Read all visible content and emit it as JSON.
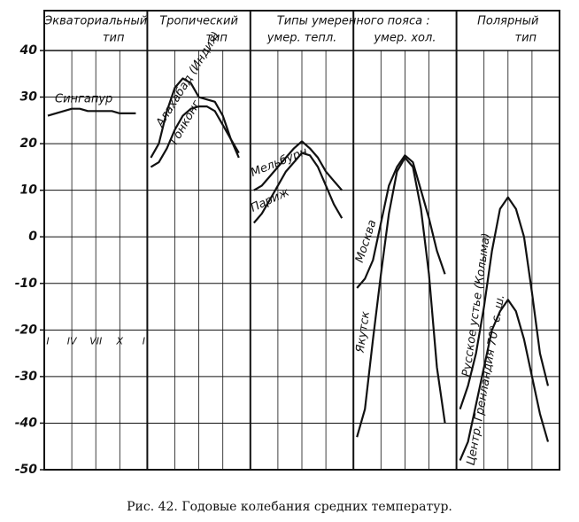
{
  "chart_data": {
    "type": "line",
    "caption": "Рис. 42. Годовые колебания средних температур.",
    "panels": [
      {
        "title": "Экваториальный",
        "sub": "тип"
      },
      {
        "title": "Тропический",
        "sub": "тип"
      },
      {
        "sub": "умер. тепл."
      },
      {
        "sub": "умер. хол."
      },
      {
        "title": "Полярный",
        "sub": "тип"
      }
    ],
    "group_title": "Типы умеренного пояса :",
    "x": [
      1,
      2,
      3,
      4,
      5,
      6,
      7,
      8,
      9,
      10,
      11,
      12
    ],
    "xlim": [
      1,
      13
    ],
    "xticks": [
      {
        "value": 1,
        "label": "I"
      },
      {
        "value": 4,
        "label": "IV"
      },
      {
        "value": 7,
        "label": "VII"
      },
      {
        "value": 10,
        "label": "X"
      },
      {
        "value": 13,
        "label": "I"
      }
    ],
    "ylim": [
      -50,
      40
    ],
    "yticks": [
      -50,
      -40,
      -30,
      -20,
      -10,
      0,
      10,
      20,
      30,
      40
    ],
    "grid": true,
    "series": [
      {
        "name": "Сингапур",
        "panel": 0,
        "color": "#111111",
        "values": [
          26,
          26.5,
          27,
          27.5,
          27.5,
          27,
          27,
          27,
          27,
          26.5,
          26.5,
          26.5
        ]
      },
      {
        "name": "Алахабад (Индия)",
        "panel": 1,
        "color": "#111111",
        "values": [
          17,
          20,
          27,
          32,
          34,
          33,
          30,
          29.5,
          29,
          26,
          21,
          18
        ]
      },
      {
        "name": "Гонконг",
        "panel": 1,
        "color": "#111111",
        "values": [
          15,
          16,
          19,
          23,
          26,
          27.5,
          28,
          28,
          27,
          24,
          21,
          17
        ]
      },
      {
        "name": "Мельбурн",
        "panel": 2,
        "color": "#111111",
        "values": [
          10,
          11,
          13,
          15,
          17,
          19,
          20.5,
          19,
          17,
          14,
          12,
          10
        ]
      },
      {
        "name": "Париж",
        "panel": 2,
        "color": "#111111",
        "values": [
          3,
          5,
          8,
          11,
          14,
          16,
          18,
          17.5,
          15,
          11,
          7,
          4
        ]
      },
      {
        "name": "Москва",
        "panel": 3,
        "color": "#111111",
        "values": [
          -11,
          -9,
          -5,
          3,
          11,
          15,
          17.5,
          16,
          10,
          4,
          -3,
          -8
        ]
      },
      {
        "name": "Якутск",
        "panel": 3,
        "color": "#111111",
        "values": [
          -43,
          -37,
          -22,
          -8,
          5,
          14,
          17,
          15,
          6,
          -8,
          -28,
          -40
        ]
      },
      {
        "name": "Русское устье (Колыма)",
        "panel": 4,
        "color": "#111111",
        "values": [
          -37,
          -32,
          -25,
          -15,
          -3,
          6,
          8.5,
          6,
          0,
          -12,
          -25,
          -32
        ]
      },
      {
        "name": "Центр. Гренландия 70° с. ш.",
        "panel": 4,
        "color": "#111111",
        "values": [
          -48,
          -44,
          -36,
          -28,
          -20,
          -16,
          -13.5,
          -16,
          -22,
          -30,
          -38,
          -44
        ]
      }
    ]
  }
}
